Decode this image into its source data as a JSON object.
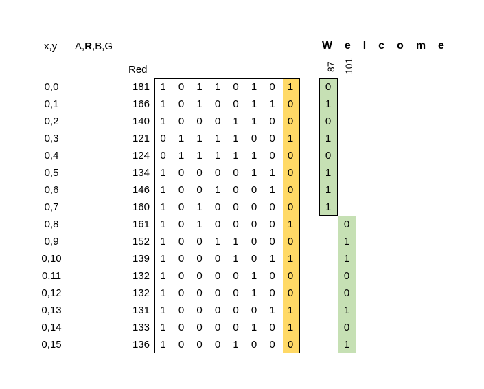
{
  "headers": {
    "xy": "x,y",
    "arbg_a": "A,",
    "arbg_r": "R",
    "arbg_bg": ",B,G",
    "red": "Red",
    "message": "Welcome",
    "char_codes": [
      "87",
      "101"
    ]
  },
  "rows": [
    {
      "coord": "0,0",
      "red": "181",
      "bits": [
        "1",
        "0",
        "1",
        "1",
        "0",
        "1",
        "0",
        "1"
      ]
    },
    {
      "coord": "0,1",
      "red": "166",
      "bits": [
        "1",
        "0",
        "1",
        "0",
        "0",
        "1",
        "1",
        "0"
      ]
    },
    {
      "coord": "0,2",
      "red": "140",
      "bits": [
        "1",
        "0",
        "0",
        "0",
        "1",
        "1",
        "0",
        "0"
      ]
    },
    {
      "coord": "0,3",
      "red": "121",
      "bits": [
        "0",
        "1",
        "1",
        "1",
        "1",
        "0",
        "0",
        "1"
      ]
    },
    {
      "coord": "0,4",
      "red": "124",
      "bits": [
        "0",
        "1",
        "1",
        "1",
        "1",
        "1",
        "0",
        "0"
      ]
    },
    {
      "coord": "0,5",
      "red": "134",
      "bits": [
        "1",
        "0",
        "0",
        "0",
        "0",
        "1",
        "1",
        "0"
      ]
    },
    {
      "coord": "0,6",
      "red": "146",
      "bits": [
        "1",
        "0",
        "0",
        "1",
        "0",
        "0",
        "1",
        "0"
      ]
    },
    {
      "coord": "0,7",
      "red": "160",
      "bits": [
        "1",
        "0",
        "1",
        "0",
        "0",
        "0",
        "0",
        "0"
      ]
    },
    {
      "coord": "0,8",
      "red": "161",
      "bits": [
        "1",
        "0",
        "1",
        "0",
        "0",
        "0",
        "0",
        "1"
      ]
    },
    {
      "coord": "0,9",
      "red": "152",
      "bits": [
        "1",
        "0",
        "0",
        "1",
        "1",
        "0",
        "0",
        "0"
      ]
    },
    {
      "coord": "0,10",
      "red": "139",
      "bits": [
        "1",
        "0",
        "0",
        "0",
        "1",
        "0",
        "1",
        "1"
      ]
    },
    {
      "coord": "0,11",
      "red": "132",
      "bits": [
        "1",
        "0",
        "0",
        "0",
        "0",
        "1",
        "0",
        "0"
      ]
    },
    {
      "coord": "0,12",
      "red": "132",
      "bits": [
        "1",
        "0",
        "0",
        "0",
        "0",
        "1",
        "0",
        "0"
      ]
    },
    {
      "coord": "0,13",
      "red": "131",
      "bits": [
        "1",
        "0",
        "0",
        "0",
        "0",
        "0",
        "1",
        "1"
      ]
    },
    {
      "coord": "0,14",
      "red": "133",
      "bits": [
        "1",
        "0",
        "0",
        "0",
        "0",
        "1",
        "0",
        "1"
      ]
    },
    {
      "coord": "0,15",
      "red": "136",
      "bits": [
        "1",
        "0",
        "0",
        "0",
        "1",
        "0",
        "0",
        "0"
      ]
    }
  ],
  "char_bits": [
    {
      "code": "87",
      "bits": [
        "0",
        "1",
        "0",
        "1",
        "0",
        "1",
        "1",
        "1"
      ]
    },
    {
      "code": "101",
      "bits": [
        "0",
        "1",
        "1",
        "0",
        "0",
        "1",
        "0",
        "1"
      ]
    }
  ],
  "colors": {
    "lsb_highlight": "#ffd966",
    "char_bits_fill": "#c6e0b4"
  }
}
